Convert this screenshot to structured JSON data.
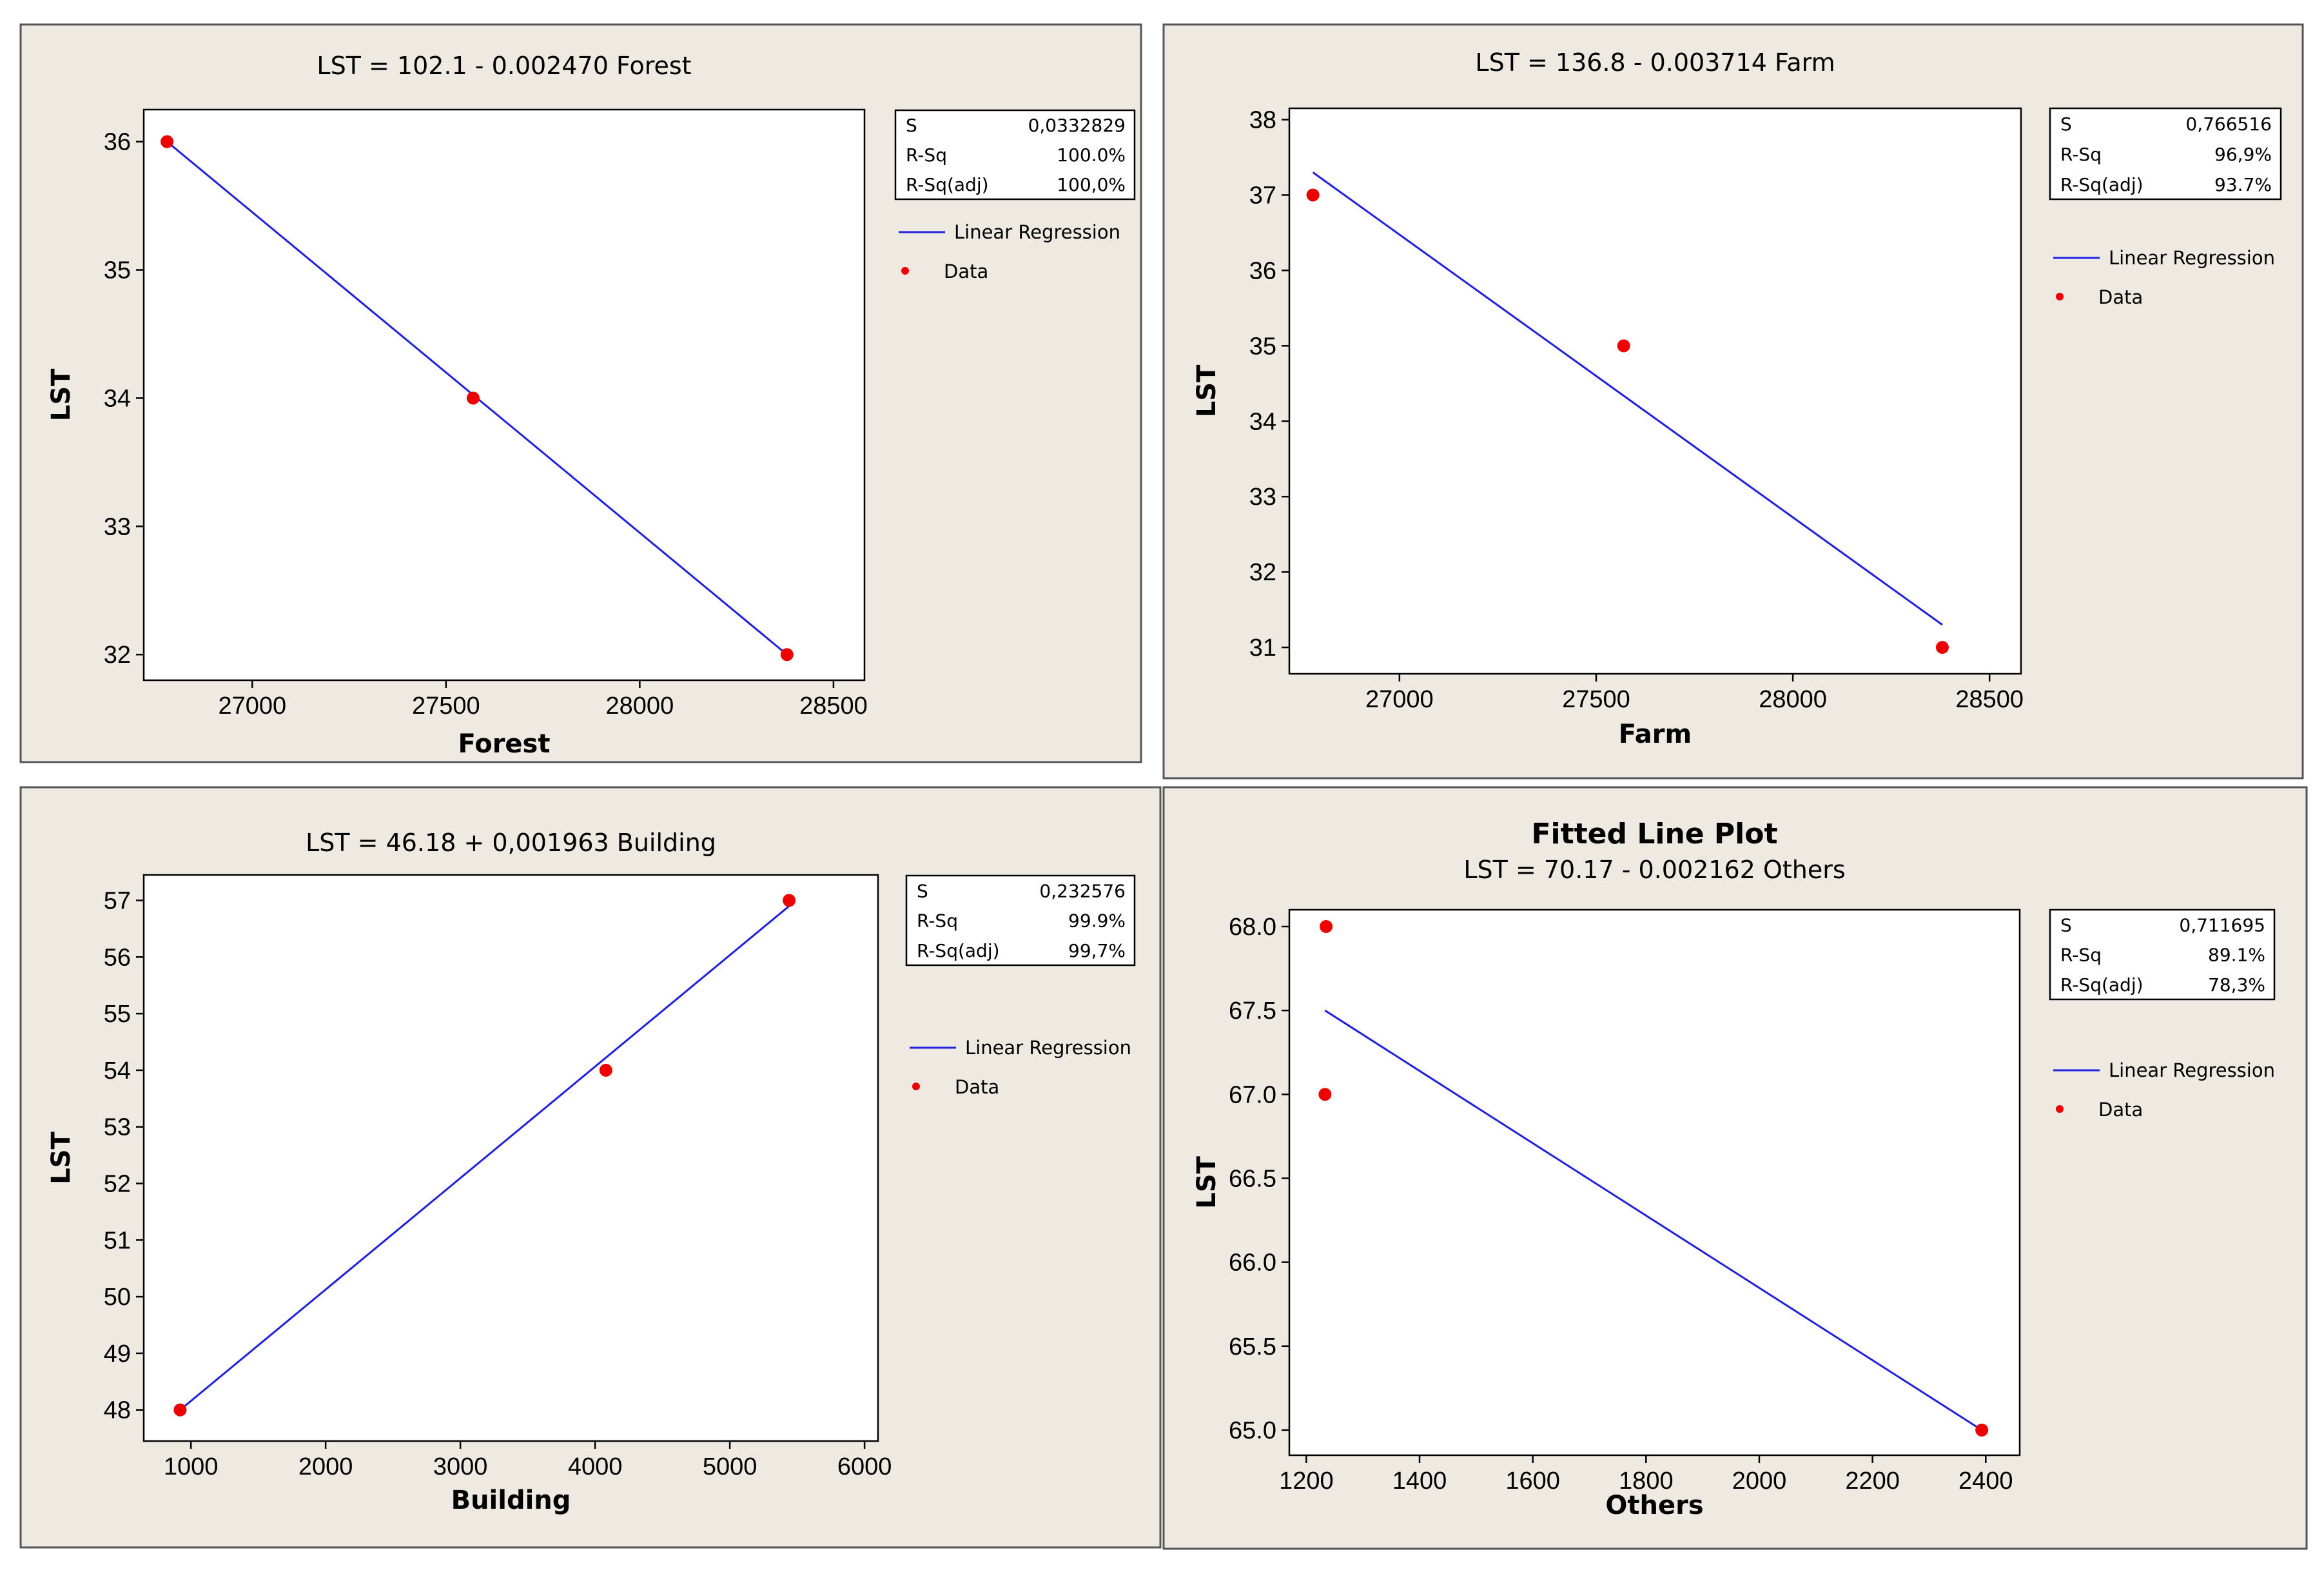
{
  "chart_data": [
    {
      "type": "scatter",
      "title": "",
      "subtitle": "LST =  102.1 - 0.002470 Forest",
      "xlabel": "Forest",
      "ylabel": "LST",
      "xlim": [
        26720,
        28580
      ],
      "ylim": [
        31.8,
        36.25
      ],
      "xticks": [
        27000,
        27500,
        28000,
        28500
      ],
      "xtick_labels": [
        "27000",
        "27500",
        "28000",
        "28500"
      ],
      "yticks": [
        32,
        33,
        34,
        35,
        36
      ],
      "ytick_labels": [
        "32",
        "33",
        "34",
        "35",
        "36"
      ],
      "points": [
        [
          26780,
          36
        ],
        [
          27570,
          34
        ],
        [
          28380,
          32
        ]
      ],
      "fit_line": [
        [
          26780,
          36.0
        ],
        [
          28380,
          32.0
        ]
      ],
      "stats": {
        "labels": [
          "S",
          "R-Sq",
          "R-Sq(adj)"
        ],
        "values": [
          "0,0332829",
          "100.0%",
          "100,0%"
        ]
      },
      "legend": {
        "line_label": "Linear Regression",
        "marker_label": "Data",
        "position": "right"
      }
    },
    {
      "type": "scatter",
      "title": "",
      "subtitle": "LST =  136.8 - 0.003714 Farm",
      "xlabel": "Farm",
      "ylabel": "LST",
      "xlim": [
        26720,
        28580
      ],
      "ylim": [
        30.65,
        38.15
      ],
      "xticks": [
        27000,
        27500,
        28000,
        28500
      ],
      "xtick_labels": [
        "27000",
        "27500",
        "28000",
        "28500"
      ],
      "yticks": [
        31,
        32,
        33,
        34,
        35,
        36,
        37,
        38
      ],
      "ytick_labels": [
        "31",
        "32",
        "33",
        "34",
        "35",
        "36",
        "37",
        "38"
      ],
      "points": [
        [
          26780,
          37
        ],
        [
          27570,
          35
        ],
        [
          28380,
          31
        ]
      ],
      "fit_line": [
        [
          26780,
          37.3
        ],
        [
          28380,
          31.3
        ]
      ],
      "stats": {
        "labels": [
          "S",
          "R-Sq",
          "R-Sq(adj)"
        ],
        "values": [
          "0,766516",
          "96,9%",
          "93.7%"
        ]
      },
      "legend": {
        "line_label": "Linear Regression",
        "marker_label": "Data",
        "position": "right"
      }
    },
    {
      "type": "scatter",
      "title": "",
      "subtitle": "LST =  46.18 + 0,001963 Building",
      "xlabel": "Building",
      "ylabel": "LST",
      "xlim": [
        650,
        6100
      ],
      "ylim": [
        47.45,
        57.45
      ],
      "xticks": [
        1000,
        2000,
        3000,
        4000,
        5000,
        6000
      ],
      "xtick_labels": [
        "1000",
        "2000",
        "3000",
        "4000",
        "5000",
        "6000"
      ],
      "yticks": [
        48,
        49,
        50,
        51,
        52,
        53,
        54,
        55,
        56,
        57
      ],
      "ytick_labels": [
        "48",
        "49",
        "50",
        "51",
        "52",
        "53",
        "54",
        "55",
        "56",
        "57"
      ],
      "points": [
        [
          920,
          48
        ],
        [
          4080,
          54
        ],
        [
          5440,
          57
        ]
      ],
      "fit_line": [
        [
          920,
          48.0
        ],
        [
          5440,
          56.9
        ]
      ],
      "stats": {
        "labels": [
          "S",
          "R-Sq",
          "R-Sq(adj)"
        ],
        "values": [
          "0,232576",
          "99.9%",
          "99,7%"
        ]
      },
      "legend": {
        "line_label": "Linear Regression",
        "marker_label": "Data",
        "position": "right"
      }
    },
    {
      "type": "scatter",
      "title": "Fitted Line Plot",
      "subtitle": "LST =  70.17 - 0.002162 Others",
      "xlabel": "Others",
      "ylabel": "LST",
      "xlim": [
        1170,
        2460
      ],
      "ylim": [
        64.85,
        68.1
      ],
      "xticks": [
        1200,
        1400,
        1600,
        1800,
        2000,
        2200,
        2400
      ],
      "xtick_labels": [
        "1200",
        "1400",
        "1600",
        "1800",
        "2000",
        "2200",
        "2400"
      ],
      "yticks": [
        65.0,
        65.5,
        66.0,
        66.5,
        67.0,
        67.5,
        68.0
      ],
      "ytick_labels": [
        "65.0",
        "65.5",
        "66.0",
        "66.5",
        "67.0",
        "67.5",
        "68.0"
      ],
      "points": [
        [
          1235,
          68
        ],
        [
          1233,
          67
        ],
        [
          2393,
          65
        ]
      ],
      "fit_line": [
        [
          1233,
          67.5
        ],
        [
          2393,
          65.0
        ]
      ],
      "stats": {
        "labels": [
          "S",
          "R-Sq",
          "R-Sq(adj)"
        ],
        "values": [
          "0,711695",
          "89.1%",
          "78,3%"
        ]
      },
      "legend": {
        "line_label": "Linear Regression",
        "marker_label": "Data",
        "position": "right"
      }
    }
  ],
  "colors": {
    "panel_bg": "#eeeae2",
    "plot_bg": "#ffffff",
    "fit_line": "#2020e0",
    "data_point": "#ee0000",
    "border": "#555555"
  }
}
